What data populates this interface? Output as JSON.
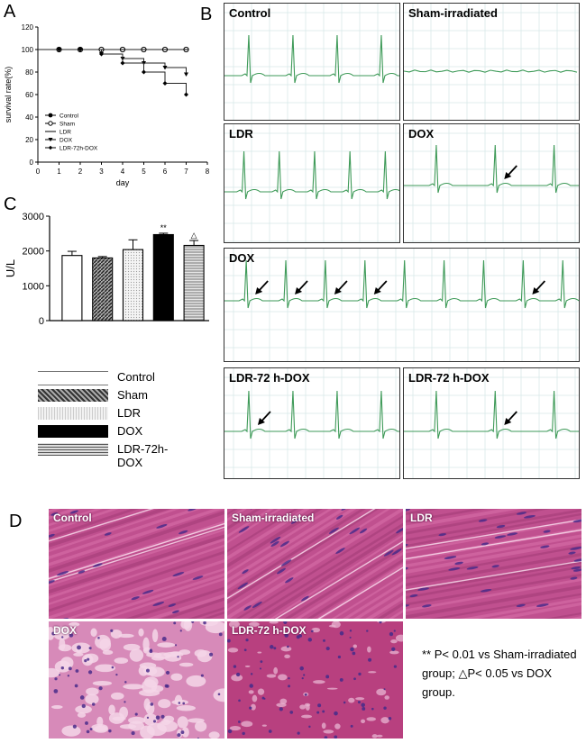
{
  "panel_letters": {
    "a": "A",
    "b": "B",
    "c": "C",
    "d": "D"
  },
  "chart_data": [
    {
      "type": "line",
      "panel": "A",
      "title": "",
      "xlabel": "day",
      "ylabel": "survival rate(%)",
      "xlim": [
        0,
        8
      ],
      "ylim": [
        0,
        120
      ],
      "xticks": [
        0,
        1,
        2,
        3,
        4,
        5,
        6,
        7,
        8
      ],
      "yticks": [
        0,
        20,
        40,
        60,
        80,
        100,
        120
      ],
      "legend_position": "lower-left",
      "x": [
        0,
        1,
        2,
        3,
        4,
        5,
        6,
        7
      ],
      "series": [
        {
          "name": "Control",
          "values": [
            100,
            100,
            100,
            100,
            100,
            100,
            100,
            100
          ]
        },
        {
          "name": "Sham",
          "values": [
            100,
            100,
            100,
            100,
            100,
            100,
            100,
            100
          ]
        },
        {
          "name": "LDR",
          "values": [
            100,
            100,
            100,
            100,
            100,
            100,
            100,
            100
          ]
        },
        {
          "name": "DOX",
          "values": [
            100,
            100,
            100,
            96,
            92,
            88,
            84,
            78
          ]
        },
        {
          "name": "LDR-72h-DOX",
          "values": [
            100,
            100,
            100,
            96,
            88,
            80,
            70,
            60
          ]
        }
      ]
    },
    {
      "type": "bar",
      "panel": "C",
      "title": "",
      "xlabel": "",
      "ylabel": "U/L",
      "ylim": [
        0,
        3000
      ],
      "yticks": [
        0,
        1000,
        2000,
        3000
      ],
      "categories": [
        "Control",
        "Sham",
        "LDR",
        "DOX",
        "LDR-72h-DOX"
      ],
      "values": [
        1870,
        1800,
        2040,
        2470,
        2160
      ],
      "errors": [
        120,
        40,
        280,
        40,
        140
      ],
      "annotations": [
        "",
        "",
        "",
        "**",
        "△"
      ]
    }
  ],
  "legend_c": [
    "Control",
    "Sham",
    "LDR",
    "DOX",
    "LDR-72h-DOX"
  ],
  "ecg_panels": {
    "control": "Control",
    "sham": "Sham-irradiated",
    "ldr": "LDR",
    "dox": "DOX",
    "dox_long": "DOX",
    "ldr72a": "LDR-72 h-DOX",
    "ldr72b": "LDR-72 h-DOX"
  },
  "histo_panels": {
    "control": "Control",
    "sham": "Sham-irradiated",
    "ldr": "LDR",
    "dox": "DOX",
    "ldr72": "LDR-72 h-DOX"
  },
  "footnote": {
    "p1": "** P< 0.01 vs Sham-irradiated group;",
    "p2": "△P< 0.05 vs DOX group."
  },
  "colors": {
    "ecg_line": "#3e9a58",
    "grid": "#d6e7e7",
    "tissue_pink": "#c0508f",
    "nuclei": "#4a2c8a"
  }
}
